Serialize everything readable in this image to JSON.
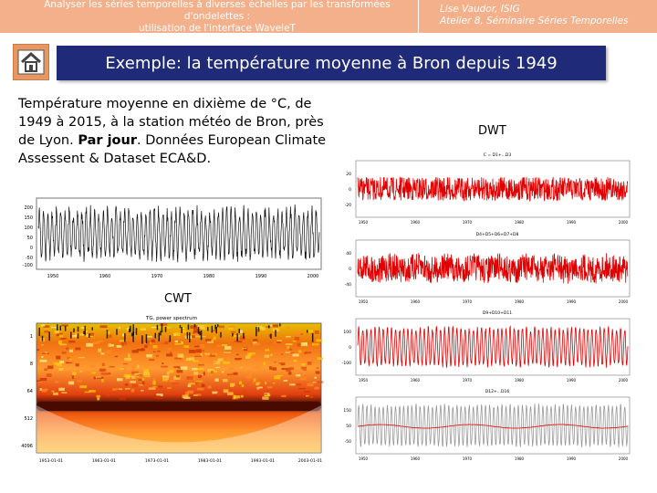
{
  "header": {
    "course_line1": "Analyser les séries temporelles à diverses échelles par les transformées d'ondelettes :",
    "course_line2": "utilisation de l'interface WaveleT",
    "author": "Lise Vaudor, ISIG",
    "event": "Atelier 8, Séminaire Séries Temporelles"
  },
  "slide": {
    "title": "Exemple: la température moyenne à Bron depuis 1949",
    "desc_part1": "Température moyenne en dixième de °C, de 1949 à 2015, à la station météo de Bron, près de Lyon. ",
    "desc_bold": "Par jour",
    "desc_part2": ". Données European Climate Assessent & Dataset ECA&D."
  },
  "labels": {
    "dwt": "DWT",
    "cwt": "CWT"
  },
  "icons": {
    "home": "home-icon"
  },
  "colors": {
    "topbar": "#f3b08a",
    "title_bg": "#1f2b78",
    "home_bg": "#e79762",
    "dwt_red": "#e00000",
    "dwt_grey": "#999999"
  },
  "raw_series_plot": {
    "ytick_labels": [
      "200",
      "150",
      "100",
      "50",
      "0",
      "-50",
      "-100"
    ],
    "xtick_labels": [
      "1950",
      "1960",
      "1970",
      "1980",
      "1990",
      "2000"
    ]
  },
  "cwt_plot": {
    "title": "TG, power spectrum",
    "ytick_labels": [
      "1",
      "8",
      "64",
      "512",
      "4096"
    ],
    "xtick_labels": [
      "1953-01-01",
      "1963-01-01",
      "1973-01-01",
      "1983-01-01",
      "1993-01-01",
      "2003-01-01"
    ]
  },
  "dwt_plots": [
    {
      "subtitle": "C = D1+...D3",
      "ytick_labels": [
        "20",
        "0",
        "-20"
      ],
      "xtick_labels": [
        "1950",
        "1960",
        "1970",
        "1980",
        "1990",
        "2000"
      ]
    },
    {
      "subtitle": "D4+D5+D6+D7+D8",
      "ytick_labels": [
        "40",
        "0",
        "-40"
      ],
      "xtick_labels": [
        "1950",
        "1960",
        "1970",
        "1980",
        "1990",
        "2000"
      ]
    },
    {
      "subtitle": "D9+D10+D11",
      "ytick_labels": [
        "100",
        "0",
        "-100"
      ],
      "xtick_labels": [
        "1950",
        "1960",
        "1970",
        "1980",
        "1990",
        "2000"
      ]
    },
    {
      "subtitle": "D12+...D16",
      "ytick_labels": [
        "150",
        "50",
        "-50"
      ],
      "xtick_labels": [
        "1950",
        "1960",
        "1970",
        "1980",
        "1990",
        "2000"
      ]
    }
  ]
}
